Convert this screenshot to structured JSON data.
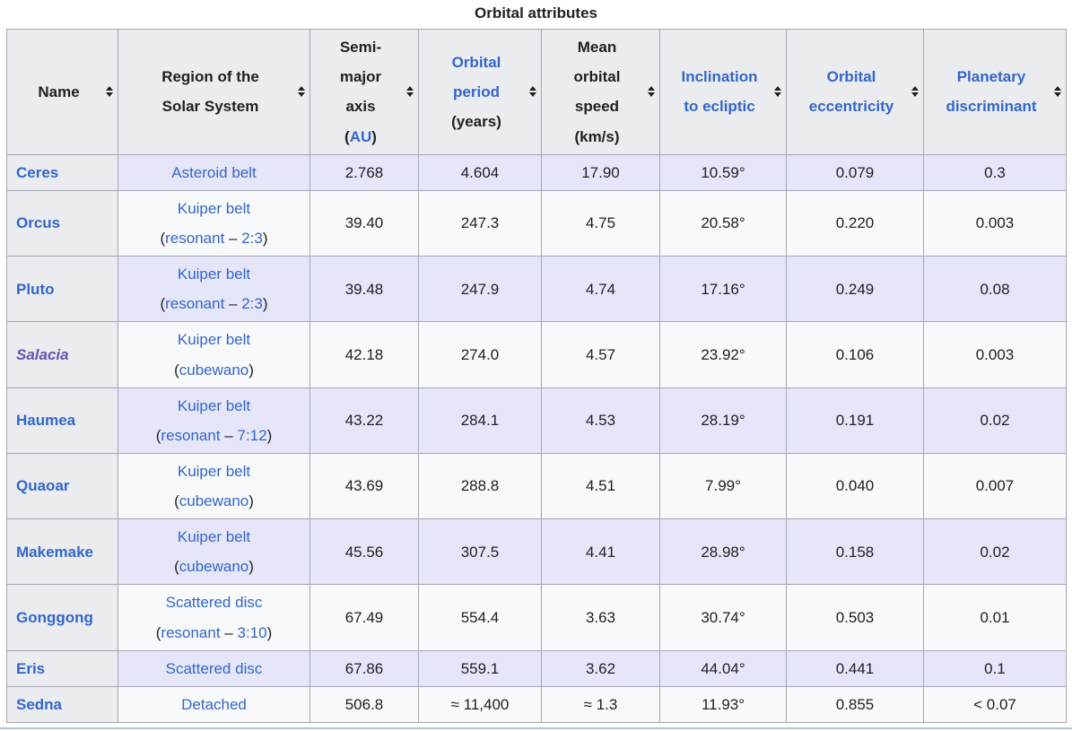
{
  "title": "Orbital attributes",
  "colors": {
    "link_blue": "#3366cc",
    "visited_purple": "#6456b4",
    "header_bg": "#eaecf0",
    "row_shade": "#e6e6fa",
    "row_plain": "#f8f9fa",
    "border": "#a2a9b1",
    "text": "#202122",
    "divider": "#aec6cf"
  },
  "table": {
    "columns": [
      {
        "id": "name",
        "parts": [
          {
            "t": "Name",
            "link": false
          }
        ]
      },
      {
        "id": "region",
        "parts": [
          {
            "t": "Region of the\nSolar System",
            "link": false
          }
        ]
      },
      {
        "id": "sma",
        "parts": [
          {
            "t": "Semi-\nmajor\naxis\n(",
            "link": false
          },
          {
            "t": "AU",
            "link": true
          },
          {
            "t": ")",
            "link": false
          }
        ]
      },
      {
        "id": "period",
        "parts": [
          {
            "t": "Orbital\nperiod",
            "link": true
          },
          {
            "t": "\n(years)",
            "link": false
          }
        ]
      },
      {
        "id": "speed",
        "parts": [
          {
            "t": "Mean\norbital\nspeed\n(km/s)",
            "link": false
          }
        ]
      },
      {
        "id": "incl",
        "parts": [
          {
            "t": "Inclination\nto ecliptic",
            "link": true
          }
        ]
      },
      {
        "id": "ecc",
        "parts": [
          {
            "t": "Orbital\neccentricity",
            "link": true
          }
        ]
      },
      {
        "id": "pd",
        "parts": [
          {
            "t": "Planetary\ndiscriminant",
            "link": true
          }
        ]
      }
    ],
    "rows": [
      {
        "name": "Ceres",
        "visited": false,
        "shade": true,
        "region_line1": [
          {
            "t": "Asteroid belt",
            "link": true
          }
        ],
        "region_line2": null,
        "sma": "2.768",
        "period": "4.604",
        "speed": "17.90",
        "incl": "10.59°",
        "ecc": "0.079",
        "pd": "0.3"
      },
      {
        "name": "Orcus",
        "visited": false,
        "shade": false,
        "region_line1": [
          {
            "t": "Kuiper belt",
            "link": true
          }
        ],
        "region_line2": [
          {
            "t": "(",
            "link": false
          },
          {
            "t": "resonant",
            "link": true
          },
          {
            "t": " – ",
            "link": false
          },
          {
            "t": "2:3",
            "link": true
          },
          {
            "t": ")",
            "link": false
          }
        ],
        "sma": "39.40",
        "period": "247.3",
        "speed": "4.75",
        "incl": "20.58°",
        "ecc": "0.220",
        "pd": "0.003"
      },
      {
        "name": "Pluto",
        "visited": false,
        "shade": true,
        "region_line1": [
          {
            "t": "Kuiper belt",
            "link": true
          }
        ],
        "region_line2": [
          {
            "t": "(",
            "link": false
          },
          {
            "t": "resonant",
            "link": true
          },
          {
            "t": " – ",
            "link": false
          },
          {
            "t": "2:3",
            "link": true
          },
          {
            "t": ")",
            "link": false
          }
        ],
        "sma": "39.48",
        "period": "247.9",
        "speed": "4.74",
        "incl": "17.16°",
        "ecc": "0.249",
        "pd": "0.08"
      },
      {
        "name": "Salacia",
        "visited": true,
        "shade": false,
        "region_line1": [
          {
            "t": "Kuiper belt",
            "link": true
          }
        ],
        "region_line2": [
          {
            "t": "(",
            "link": false
          },
          {
            "t": "cubewano",
            "link": true
          },
          {
            "t": ")",
            "link": false
          }
        ],
        "sma": "42.18",
        "period": "274.0",
        "speed": "4.57",
        "incl": "23.92°",
        "ecc": "0.106",
        "pd": "0.003"
      },
      {
        "name": "Haumea",
        "visited": false,
        "shade": true,
        "region_line1": [
          {
            "t": "Kuiper belt",
            "link": true
          }
        ],
        "region_line2": [
          {
            "t": "(",
            "link": false
          },
          {
            "t": "resonant",
            "link": true
          },
          {
            "t": " – ",
            "link": false
          },
          {
            "t": "7:12",
            "link": true
          },
          {
            "t": ")",
            "link": false
          }
        ],
        "sma": "43.22",
        "period": "284.1",
        "speed": "4.53",
        "incl": "28.19°",
        "ecc": "0.191",
        "pd": "0.02"
      },
      {
        "name": "Quaoar",
        "visited": false,
        "shade": false,
        "region_line1": [
          {
            "t": "Kuiper belt",
            "link": true
          }
        ],
        "region_line2": [
          {
            "t": "(",
            "link": false
          },
          {
            "t": "cubewano",
            "link": true
          },
          {
            "t": ")",
            "link": false
          }
        ],
        "sma": "43.69",
        "period": "288.8",
        "speed": "4.51",
        "incl": "7.99°",
        "ecc": "0.040",
        "pd": "0.007"
      },
      {
        "name": "Makemake",
        "visited": false,
        "shade": true,
        "region_line1": [
          {
            "t": "Kuiper belt",
            "link": true
          }
        ],
        "region_line2": [
          {
            "t": "(",
            "link": false
          },
          {
            "t": "cubewano",
            "link": true
          },
          {
            "t": ")",
            "link": false
          }
        ],
        "sma": "45.56",
        "period": "307.5",
        "speed": "4.41",
        "incl": "28.98°",
        "ecc": "0.158",
        "pd": "0.02"
      },
      {
        "name": "Gonggong",
        "visited": false,
        "shade": false,
        "region_line1": [
          {
            "t": "Scattered disc",
            "link": true
          }
        ],
        "region_line2": [
          {
            "t": "(",
            "link": false
          },
          {
            "t": "resonant",
            "link": true
          },
          {
            "t": " – ",
            "link": false
          },
          {
            "t": "3:10",
            "link": true
          },
          {
            "t": ")",
            "link": false
          }
        ],
        "sma": "67.49",
        "period": "554.4",
        "speed": "3.63",
        "incl": "30.74°",
        "ecc": "0.503",
        "pd": "0.01"
      },
      {
        "name": "Eris",
        "visited": false,
        "shade": true,
        "region_line1": [
          {
            "t": "Scattered disc",
            "link": true
          }
        ],
        "region_line2": null,
        "sma": "67.86",
        "period": "559.1",
        "speed": "3.62",
        "incl": "44.04°",
        "ecc": "0.441",
        "pd": "0.1"
      },
      {
        "name": "Sedna",
        "visited": false,
        "shade": false,
        "region_line1": [
          {
            "t": "Detached",
            "link": true
          }
        ],
        "region_line2": null,
        "sma": "506.8",
        "period": "≈ 11,400",
        "speed": "≈ 1.3",
        "incl": "11.93°",
        "ecc": "0.855",
        "pd": "< 0.07"
      }
    ]
  },
  "chart_data": {
    "type": "table",
    "title": "Orbital attributes",
    "columns": [
      "Name",
      "Region of the Solar System",
      "Semi-major axis (AU)",
      "Orbital period (years)",
      "Mean orbital speed (km/s)",
      "Inclination to ecliptic",
      "Orbital eccentricity",
      "Planetary discriminant"
    ],
    "rows": [
      [
        "Ceres",
        "Asteroid belt",
        "2.768",
        "4.604",
        "17.90",
        "10.59°",
        "0.079",
        "0.3"
      ],
      [
        "Orcus",
        "Kuiper belt (resonant – 2:3)",
        "39.40",
        "247.3",
        "4.75",
        "20.58°",
        "0.220",
        "0.003"
      ],
      [
        "Pluto",
        "Kuiper belt (resonant – 2:3)",
        "39.48",
        "247.9",
        "4.74",
        "17.16°",
        "0.249",
        "0.08"
      ],
      [
        "Salacia",
        "Kuiper belt (cubewano)",
        "42.18",
        "274.0",
        "4.57",
        "23.92°",
        "0.106",
        "0.003"
      ],
      [
        "Haumea",
        "Kuiper belt (resonant – 7:12)",
        "43.22",
        "284.1",
        "4.53",
        "28.19°",
        "0.191",
        "0.02"
      ],
      [
        "Quaoar",
        "Kuiper belt (cubewano)",
        "43.69",
        "288.8",
        "4.51",
        "7.99°",
        "0.040",
        "0.007"
      ],
      [
        "Makemake",
        "Kuiper belt (cubewano)",
        "45.56",
        "307.5",
        "4.41",
        "28.98°",
        "0.158",
        "0.02"
      ],
      [
        "Gonggong",
        "Scattered disc (resonant – 3:10)",
        "67.49",
        "554.4",
        "3.63",
        "30.74°",
        "0.503",
        "0.01"
      ],
      [
        "Eris",
        "Scattered disc",
        "67.86",
        "559.1",
        "3.62",
        "44.04°",
        "0.441",
        "0.1"
      ],
      [
        "Sedna",
        "Detached",
        "506.8",
        "≈ 11,400",
        "≈ 1.3",
        "11.93°",
        "0.855",
        "< 0.07"
      ]
    ],
    "sortable": true,
    "legend_position": "none",
    "grid": true
  }
}
